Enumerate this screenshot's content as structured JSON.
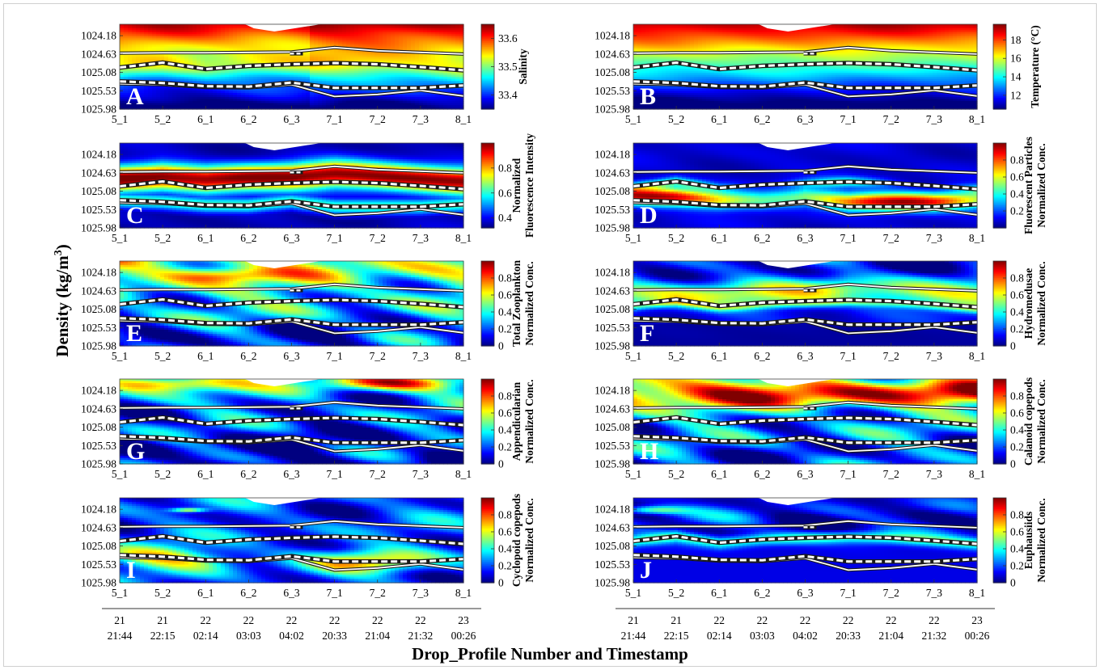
{
  "figure": {
    "ylabel_main": "Density (kg/m",
    "ylabel_sup": "3",
    "ylabel_close": ")",
    "xlabel_main": "Drop_Profile Number and Timestamp"
  },
  "chart_data": {
    "type": "heatmap",
    "x_profiles": [
      "5_1",
      "5_2",
      "6_1",
      "6_2",
      "6_3",
      "7_1",
      "7_2",
      "7_3",
      "8_1"
    ],
    "timestamp_days": [
      "21",
      "21",
      "22",
      "22",
      "22",
      "22",
      "22",
      "22",
      "23"
    ],
    "timestamp_times": [
      "21:44",
      "22:15",
      "02:14",
      "03:03",
      "04:02",
      "20:33",
      "21:04",
      "21:32",
      "00:26"
    ],
    "y_ticks": [
      "1024.18",
      "1024.63",
      "1025.08",
      "1025.53",
      "1025.98"
    ],
    "ylim": [
      1023.9,
      1025.98
    ],
    "boundary_lines": {
      "upper_solid": [
        1024.61,
        1024.6,
        1024.6,
        1024.59,
        1024.58,
        1024.47,
        1024.55,
        1024.59,
        1024.63
      ],
      "upper_dashed": [
        1024.96,
        1024.84,
        1025.0,
        1024.92,
        1024.88,
        1024.85,
        1024.88,
        1024.95,
        1025.03
      ],
      "lower_dashed": [
        1025.3,
        1025.34,
        1025.42,
        1025.43,
        1025.33,
        1025.46,
        1025.46,
        1025.46,
        1025.4
      ],
      "lower_solid": [
        1025.36,
        1025.38,
        1025.45,
        1025.46,
        1025.38,
        1025.67,
        1025.62,
        1025.52,
        1025.66
      ]
    },
    "panels": [
      {
        "letter": "A",
        "cb_label": [
          "Salinity"
        ],
        "cb_ticks": [
          "33.4",
          "33.5",
          "33.6"
        ],
        "cb_range": [
          33.35,
          33.65
        ],
        "pattern": "salinity"
      },
      {
        "letter": "B",
        "cb_label": [
          "Temperature (°C)"
        ],
        "cb_ticks": [
          "12",
          "14",
          "16",
          "18"
        ],
        "cb_range": [
          10.5,
          19.7
        ],
        "pattern": "temperature"
      },
      {
        "letter": "C",
        "cb_label": [
          "Normalized",
          "Fluorescence Intensity"
        ],
        "cb_ticks": [
          "0.4",
          "0.6",
          "0.8"
        ],
        "cb_range": [
          0.32,
          1.0
        ],
        "pattern": "fluorescence"
      },
      {
        "letter": "D",
        "cb_label": [
          "Fluorescent Particles",
          "Normalized Conc."
        ],
        "cb_ticks": [
          "0.2",
          "0.4",
          "0.6",
          "0.8"
        ],
        "cb_range": [
          0.0,
          1.0
        ],
        "pattern": "particles"
      },
      {
        "letter": "E",
        "cb_label": [
          "Total Zooplankton",
          "Normalized Conc."
        ],
        "cb_ticks": [
          "0",
          "0.2",
          "0.4",
          "0.6",
          "0.8"
        ],
        "cb_range": [
          0.0,
          1.0
        ],
        "pattern": "zooplankton"
      },
      {
        "letter": "F",
        "cb_label": [
          "Hydromedusae",
          "Normalized Conc."
        ],
        "cb_ticks": [
          "0",
          "0.2",
          "0.4",
          "0.6",
          "0.8"
        ],
        "cb_range": [
          0.0,
          1.0
        ],
        "pattern": "hydromedusae"
      },
      {
        "letter": "G",
        "cb_label": [
          "Appendicularian",
          "Normalized Conc."
        ],
        "cb_ticks": [
          "0",
          "0.2",
          "0.4",
          "0.6",
          "0.8"
        ],
        "cb_range": [
          0.0,
          1.0
        ],
        "pattern": "appendicularian"
      },
      {
        "letter": "H",
        "cb_label": [
          "Calanoid copepods",
          "Normalized Conc."
        ],
        "cb_ticks": [
          "0",
          "0.2",
          "0.4",
          "0.6",
          "0.8"
        ],
        "cb_range": [
          0.0,
          1.0
        ],
        "pattern": "calanoid"
      },
      {
        "letter": "I",
        "cb_label": [
          "Cyclopoid copepods",
          "Normalized Conc."
        ],
        "cb_ticks": [
          "0",
          "0.2",
          "0.4",
          "0.6",
          "0.8"
        ],
        "cb_range": [
          0.0,
          1.0
        ],
        "pattern": "cyclopoid"
      },
      {
        "letter": "J",
        "cb_label": [
          "Euphausiids",
          "Normalized Conc."
        ],
        "cb_ticks": [
          "0",
          "0.2",
          "0.4",
          "0.6",
          "0.8"
        ],
        "cb_range": [
          0.0,
          1.0
        ],
        "pattern": "euphausiids"
      }
    ],
    "colormap": "jet",
    "colors": {
      "panel_letter": "#ffffff",
      "solid_line": "#ffffff",
      "dashed_line": "#ffffff",
      "line_outline": "#1a1a1a",
      "mask": "#ffffff"
    }
  }
}
